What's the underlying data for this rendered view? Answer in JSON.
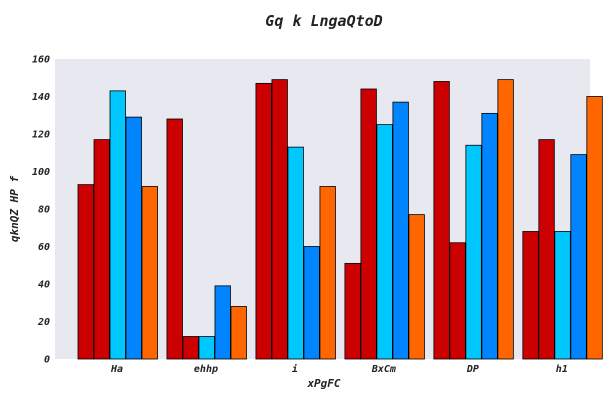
{
  "chart_data": {
    "type": "bar",
    "title": "Gq k  LngaQtoD",
    "xlabel": "xPgFC",
    "ylabel": "qknQZ  HP f",
    "categories": [
      "Ha",
      "ehhp",
      "i",
      "BxCm",
      "DP",
      "h1"
    ],
    "series": [
      {
        "color": "#cc0000",
        "values": [
          93,
          128,
          147,
          51,
          148,
          68
        ]
      },
      {
        "color": "#cc0000",
        "values": [
          117,
          12,
          149,
          144,
          62,
          117
        ]
      },
      {
        "color": "#00c8ff",
        "values": [
          143,
          12,
          113,
          125,
          114,
          68
        ]
      },
      {
        "color": "#0084ff",
        "values": [
          129,
          39,
          60,
          137,
          131,
          109
        ]
      },
      {
        "color": "#ff6600",
        "values": [
          92,
          28,
          92,
          77,
          149,
          140
        ]
      }
    ],
    "ylim": [
      0,
      160
    ],
    "yticks": [
      0,
      20,
      40,
      60,
      80,
      100,
      120,
      140,
      160
    ],
    "grid": false,
    "background": "#e8e8f0"
  }
}
